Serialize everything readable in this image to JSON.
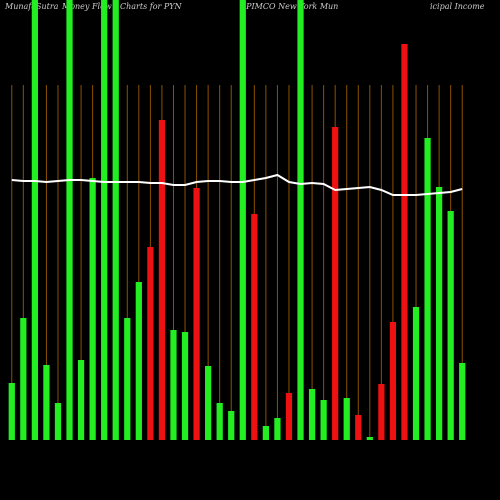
{
  "chart_data": {
    "type": "bar",
    "title": [
      "MunafaSutra",
      "Money Flow",
      "Charts for PYN",
      "(PIMCO New York Mun",
      "icipal Income"
    ],
    "categories": [
      null,
      null,
      null,
      null,
      null,
      null,
      null,
      null,
      null,
      null,
      null,
      null,
      null,
      null,
      null,
      null,
      null,
      null,
      null,
      null,
      null,
      null,
      null,
      null,
      null,
      null,
      null,
      null,
      null,
      null,
      null,
      null,
      null,
      null,
      null,
      null,
      null,
      null,
      null,
      null
    ],
    "values": [
      57,
      122,
      440,
      75,
      37,
      440,
      80,
      262,
      440,
      440,
      122,
      158,
      193,
      320,
      110,
      108,
      252,
      74,
      37,
      29,
      440,
      226,
      14,
      22,
      47,
      440,
      51,
      40,
      313,
      42,
      25,
      3,
      56,
      118,
      396,
      133,
      302,
      253,
      229,
      77
    ],
    "colors": [
      "#22ee22",
      "#22ee22",
      "#22ee22",
      "#22ee22",
      "#22ee22",
      "#22ee22",
      "#22ee22",
      "#22ee22",
      "#22ee22",
      "#22ee22",
      "#22ee22",
      "#22ee22",
      "#ee1111",
      "#ee1111",
      "#22ee22",
      "#22ee22",
      "#ee1111",
      "#22ee22",
      "#22ee22",
      "#22ee22",
      "#22ee22",
      "#ee1111",
      "#22ee22",
      "#22ee22",
      "#ee1111",
      "#22ee22",
      "#22ee22",
      "#22ee22",
      "#ee1111",
      "#22ee22",
      "#ee1111",
      "#22ee22",
      "#ee1111",
      "#ee1111",
      "#ee1111",
      "#22ee22",
      "#22ee22",
      "#22ee22",
      "#22ee22",
      "#22ee22"
    ],
    "line": {
      "color": "#ffffff",
      "values": [
        260,
        259,
        259,
        258,
        259,
        260,
        260,
        259,
        258,
        258,
        258,
        258,
        257,
        257,
        255,
        255,
        258,
        259,
        259,
        258,
        258,
        260,
        262,
        265,
        258,
        256,
        257,
        256,
        250,
        251,
        252,
        253,
        250,
        245,
        245,
        245,
        246,
        247,
        248,
        251
      ]
    },
    "ylim": [
      0,
      440
    ],
    "vline_color": "#8a5200"
  }
}
